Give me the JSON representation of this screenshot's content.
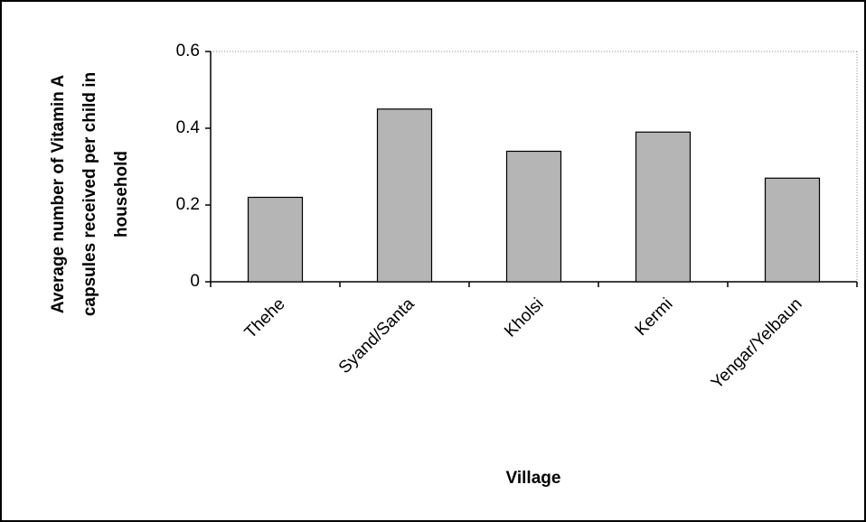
{
  "chart_data": {
    "type": "bar",
    "ylabel": [
      "Average number of Vitamin A",
      "capsules received per child in",
      "household"
    ],
    "xlabel": "Village",
    "categories": [
      "Thehe",
      "Syand/Santa",
      "Kholsi",
      "Kermi",
      "Yengar/Yelbaun"
    ],
    "values": [
      0.22,
      0.45,
      0.34,
      0.39,
      0.27
    ],
    "color": "#b5b5b5",
    "ylim": [
      0,
      0.6
    ],
    "yticks": [
      0,
      0.2,
      0.4,
      0.6
    ],
    "grid": false
  }
}
